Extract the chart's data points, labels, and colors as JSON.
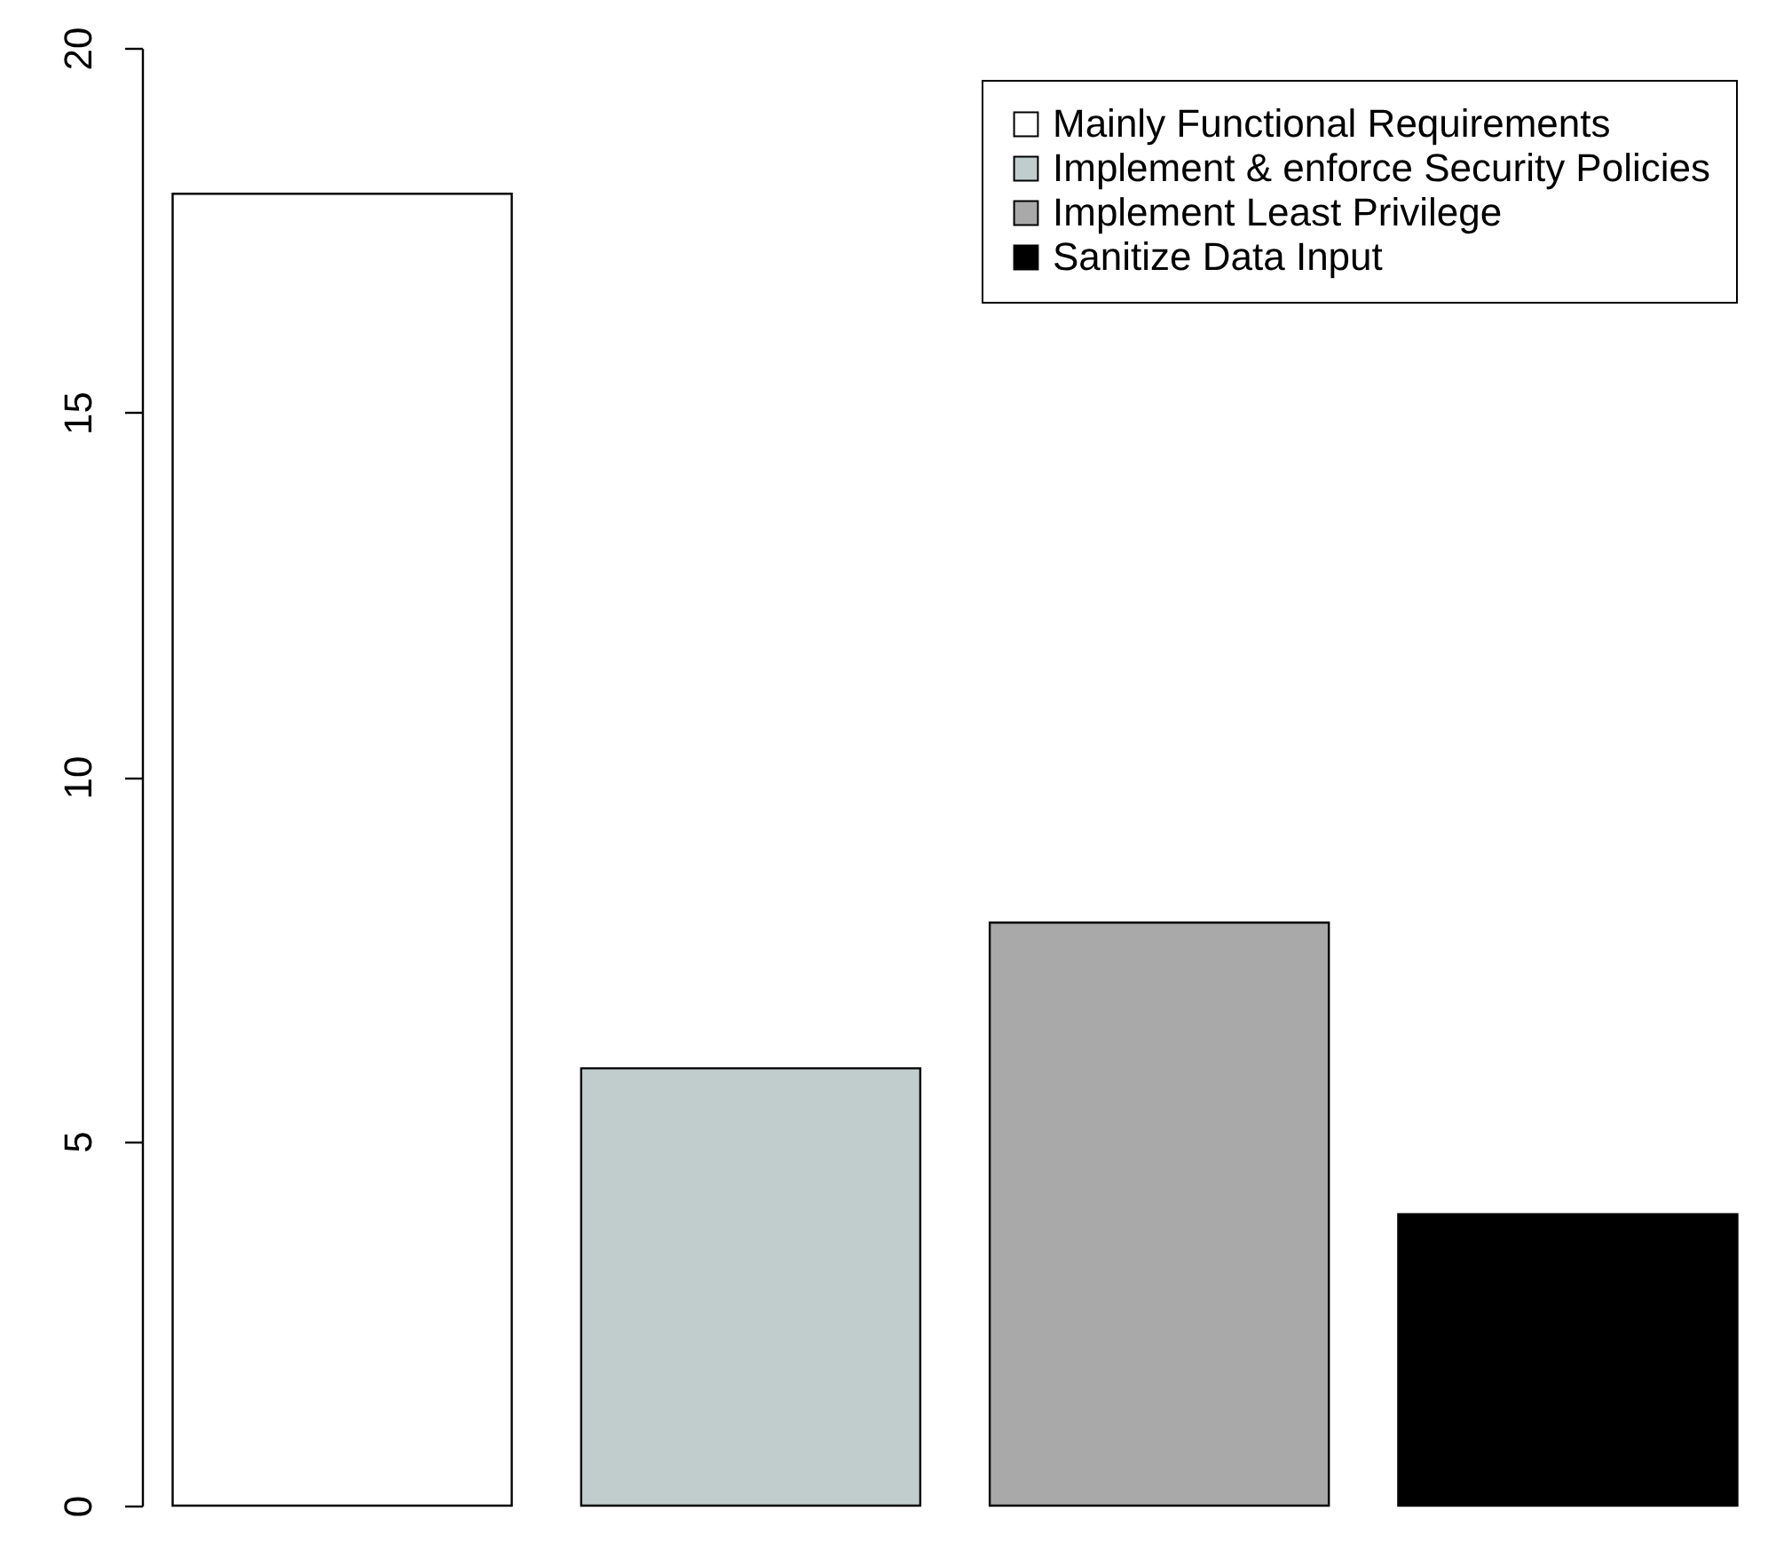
{
  "chart_data": {
    "type": "bar",
    "categories": [
      null,
      null,
      null,
      null
    ],
    "stacked": true,
    "series": [
      {
        "name": "Mainly Functional Requirements",
        "color": "#ffffff",
        "values": [
          18,
          null,
          null,
          null
        ]
      },
      {
        "name": "Implement & enforce Security Policies",
        "color": "#c1cdcd",
        "values": [
          null,
          6,
          null,
          null
        ]
      },
      {
        "name": "Implement Least Privilege",
        "color": "#a9a9a9",
        "values": [
          null,
          null,
          8,
          null
        ]
      },
      {
        "name": "Sanitize Data Input",
        "color": "#000000",
        "values": [
          null,
          null,
          null,
          4
        ]
      }
    ],
    "ylim": [
      0,
      20
    ],
    "yticks": [
      0,
      5,
      10,
      15,
      20
    ],
    "grid": false,
    "legend": "top right"
  }
}
